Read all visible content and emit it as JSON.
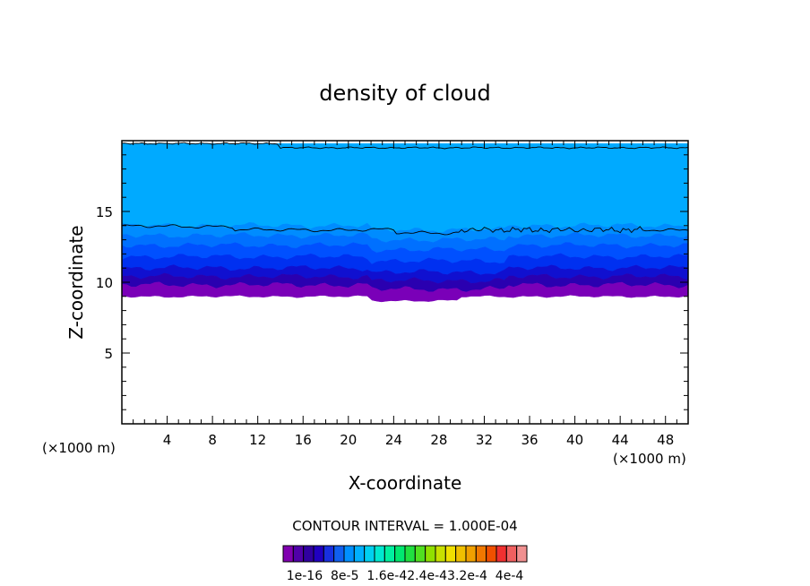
{
  "chart_data": {
    "type": "contour",
    "title": "density of cloud",
    "xlabel": "X-coordinate",
    "ylabel": "Z-coordinate",
    "x_unit": "(×1000 m)",
    "y_unit": "(×1000 m)",
    "xlim": [
      0,
      50
    ],
    "ylim": [
      0,
      20
    ],
    "x_ticks": [
      4,
      8,
      12,
      16,
      20,
      24,
      28,
      32,
      36,
      40,
      44,
      48
    ],
    "y_ticks": [
      5,
      10,
      15
    ],
    "contour_interval_text": "CONTOUR INTERVAL = 1.000E-04",
    "colorbar": {
      "labels": [
        "1e-16",
        "8e-5",
        "1.6e-4",
        "2.4e-4",
        "3.2e-4",
        "4e-4"
      ],
      "label_string": "1e-16  8e-5  1.6e-42.4e-43.2e-4  4e-4",
      "colors": [
        "#8000b0",
        "#5000a8",
        "#3000a0",
        "#2000c0",
        "#1830e0",
        "#1060f0",
        "#0090ff",
        "#00b0ff",
        "#00d0f0",
        "#00e8d0",
        "#00f0a0",
        "#00e870",
        "#20e040",
        "#50e020",
        "#90e000",
        "#c8e000",
        "#f0e000",
        "#f0c000",
        "#f0a000",
        "#f07800",
        "#f05000",
        "#f03030",
        "#f06060",
        "#f09090"
      ]
    },
    "cloud_base_km": 9.0,
    "cloud_top_km": 19.8,
    "contour_line_levels_km": [
      13.7,
      19.5
    ],
    "bands": [
      {
        "z_bottom": 9.0,
        "z_top": 9.8,
        "color": "#7a00b8"
      },
      {
        "z_bottom": 9.8,
        "z_top": 10.4,
        "color": "#2a00b0"
      },
      {
        "z_bottom": 10.4,
        "z_top": 11.0,
        "color": "#1010d0"
      },
      {
        "z_bottom": 11.0,
        "z_top": 11.8,
        "color": "#0030f0"
      },
      {
        "z_bottom": 11.8,
        "z_top": 12.6,
        "color": "#0050ff"
      },
      {
        "z_bottom": 12.6,
        "z_top": 13.3,
        "color": "#0070ff"
      },
      {
        "z_bottom": 13.3,
        "z_top": 14.0,
        "color": "#008cff"
      },
      {
        "z_bottom": 14.0,
        "z_top": 19.8,
        "color": "#00aaff"
      }
    ]
  }
}
